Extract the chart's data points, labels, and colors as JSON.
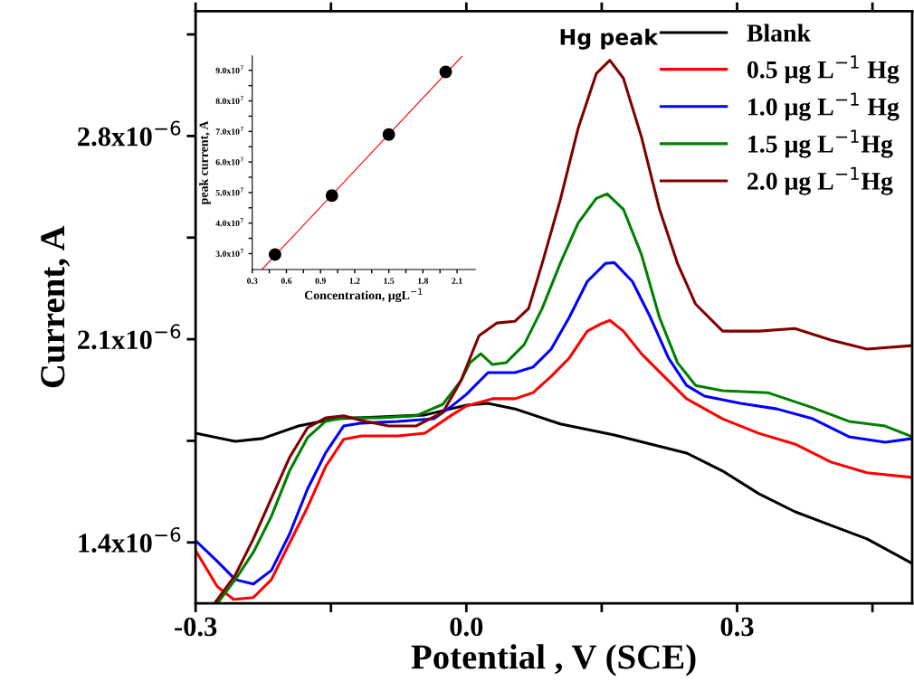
{
  "chart_data": [
    {
      "type": "line",
      "xlabel": "Potential , V (SCE)",
      "ylabel": "Current, A",
      "xlim": [
        -0.3,
        0.494
      ],
      "ylim": [
        1.19e-06,
        3.23e-06
      ],
      "xticks": [
        {
          "value": -0.3,
          "label": "-0.3"
        },
        {
          "value": -0.15,
          "label": null
        },
        {
          "value": 0.0,
          "label": "0.0"
        },
        {
          "value": 0.15,
          "label": null
        },
        {
          "value": 0.3,
          "label": "0.3"
        },
        {
          "value": 0.45,
          "label": null
        }
      ],
      "yticks": [
        {
          "value": 1.4e-06,
          "label": "1.4x10$^{−6}$"
        },
        {
          "value": 1.75e-06,
          "label": null
        },
        {
          "value": 2.1e-06,
          "label": "2.1x10$^{−6}$"
        },
        {
          "value": 2.45e-06,
          "label": null
        },
        {
          "value": 2.8e-06,
          "label": "2.8x10$^{−6}$"
        },
        {
          "value": 3.15e-06,
          "label": null
        }
      ],
      "grid": false,
      "legend": "top right",
      "line_style": "solid",
      "marker": "none",
      "annotations": [
        "Hg peak"
      ],
      "series": [
        {
          "name": "Blank",
          "color": "#000000",
          "x": [
            -0.3,
            -0.256,
            -0.226,
            -0.186,
            -0.146,
            -0.096,
            -0.046,
            0.0,
            0.024,
            0.054,
            0.104,
            0.164,
            0.204,
            0.244,
            0.284,
            0.324,
            0.364,
            0.404,
            0.444,
            0.494
          ],
          "values": [
            1.776e-06,
            1.748e-06,
            1.758e-06,
            1.801e-06,
            1.826e-06,
            1.832e-06,
            1.839e-06,
            1.873e-06,
            1.879e-06,
            1.86e-06,
            1.808e-06,
            1.77e-06,
            1.739e-06,
            1.708e-06,
            1.646e-06,
            1.568e-06,
            1.506e-06,
            1.459e-06,
            1.412e-06,
            1.328e-06
          ]
        },
        {
          "name": "0.5 μg L$^{−1}$ Hg",
          "color": "#ff0000",
          "x": [
            -0.3,
            -0.276,
            -0.258,
            -0.236,
            -0.216,
            -0.196,
            -0.176,
            -0.156,
            -0.136,
            -0.116,
            -0.076,
            -0.046,
            -0.016,
            0.0,
            0.029,
            0.054,
            0.074,
            0.094,
            0.114,
            0.134,
            0.149,
            0.159,
            0.174,
            0.194,
            0.214,
            0.244,
            0.284,
            0.324,
            0.364,
            0.404,
            0.444,
            0.494
          ],
          "values": [
            1.372e-06,
            1.248e-06,
            1.204e-06,
            1.21e-06,
            1.272e-06,
            1.397e-06,
            1.521e-06,
            1.661e-06,
            1.755e-06,
            1.767e-06,
            1.767e-06,
            1.776e-06,
            1.839e-06,
            1.87e-06,
            1.895e-06,
            1.895e-06,
            1.916e-06,
            1.972e-06,
            2.035e-06,
            2.128e-06,
            2.153e-06,
            2.165e-06,
            2.128e-06,
            2.05e-06,
            1.988e-06,
            1.895e-06,
            1.826e-06,
            1.776e-06,
            1.739e-06,
            1.677e-06,
            1.64e-06,
            1.624e-06
          ]
        },
        {
          "name": "1.0 μg L$^{−1}$ Hg",
          "color": "#0000ff",
          "x": [
            -0.3,
            -0.276,
            -0.256,
            -0.236,
            -0.216,
            -0.196,
            -0.176,
            -0.156,
            -0.136,
            -0.116,
            -0.076,
            -0.036,
            -0.016,
            0.0,
            0.024,
            0.054,
            0.074,
            0.094,
            0.114,
            0.134,
            0.154,
            0.164,
            0.184,
            0.204,
            0.224,
            0.244,
            0.264,
            0.304,
            0.344,
            0.384,
            0.424,
            0.464,
            0.494
          ],
          "values": [
            1.406e-06,
            1.335e-06,
            1.272e-06,
            1.257e-06,
            1.304e-06,
            1.428e-06,
            1.584e-06,
            1.708e-06,
            1.801e-06,
            1.811e-06,
            1.817e-06,
            1.826e-06,
            1.87e-06,
            1.91e-06,
            1.985e-06,
            1.985e-06,
            2.004e-06,
            2.066e-06,
            2.175e-06,
            2.299e-06,
            2.361e-06,
            2.364e-06,
            2.299e-06,
            2.175e-06,
            2.035e-06,
            1.941e-06,
            1.904e-06,
            1.879e-06,
            1.86e-06,
            1.826e-06,
            1.764e-06,
            1.745e-06,
            1.758e-06
          ]
        },
        {
          "name": "1.5 μg L$^{−1}$Hg",
          "color": "#008000",
          "x": [
            -0.276,
            -0.256,
            -0.236,
            -0.216,
            -0.196,
            -0.176,
            -0.156,
            -0.136,
            -0.096,
            -0.056,
            -0.026,
            -0.006,
            0.004,
            0.016,
            0.029,
            0.044,
            0.064,
            0.084,
            0.104,
            0.124,
            0.144,
            0.156,
            0.174,
            0.194,
            0.214,
            0.234,
            0.254,
            0.284,
            0.334,
            0.384,
            0.424,
            0.464,
            0.494
          ],
          "values": [
            1.19e-06,
            1.272e-06,
            1.366e-06,
            1.49e-06,
            1.646e-06,
            1.761e-06,
            1.817e-06,
            1.829e-06,
            1.829e-06,
            1.836e-06,
            1.876e-06,
            1.957e-06,
            2.019e-06,
            2.05e-06,
            2.013e-06,
            2.019e-06,
            2.081e-06,
            2.206e-06,
            2.361e-06,
            2.501e-06,
            2.585e-06,
            2.601e-06,
            2.548e-06,
            2.392e-06,
            2.175e-06,
            2.019e-06,
            1.941e-06,
            1.923e-06,
            1.916e-06,
            1.864e-06,
            1.817e-06,
            1.801e-06,
            1.764e-06
          ]
        },
        {
          "name": "2.0 μg L$^{−1}$Hg",
          "color": "#800000",
          "x": [
            -0.279,
            -0.256,
            -0.236,
            -0.216,
            -0.196,
            -0.176,
            -0.156,
            -0.136,
            -0.116,
            -0.086,
            -0.056,
            -0.026,
            -0.006,
            0.014,
            0.034,
            0.054,
            0.069,
            0.084,
            0.104,
            0.124,
            0.144,
            0.159,
            0.174,
            0.194,
            0.214,
            0.234,
            0.254,
            0.284,
            0.324,
            0.364,
            0.404,
            0.444,
            0.494
          ],
          "values": [
            1.19e-06,
            1.288e-06,
            1.412e-06,
            1.552e-06,
            1.692e-06,
            1.795e-06,
            1.829e-06,
            1.836e-06,
            1.82e-06,
            1.801e-06,
            1.801e-06,
            1.848e-06,
            1.957e-06,
            2.112e-06,
            2.156e-06,
            2.162e-06,
            2.206e-06,
            2.361e-06,
            2.579e-06,
            2.828e-06,
            3.015e-06,
            3.061e-06,
            2.999e-06,
            2.797e-06,
            2.548e-06,
            2.361e-06,
            2.221e-06,
            2.128e-06,
            2.128e-06,
            2.137e-06,
            2.097e-06,
            2.066e-06,
            2.078e-06
          ]
        }
      ]
    },
    {
      "type": "scatter",
      "xlabel": "Concentration, μgL$^{−1}$",
      "ylabel": "peak current, A",
      "xlim": [
        0.3,
        2.26
      ],
      "ylim": [
        24800000.0,
        94700000.0
      ],
      "xticks": [
        {
          "value": 0.3,
          "label": "0.3"
        },
        {
          "value": 0.45,
          "label": null
        },
        {
          "value": 0.6,
          "label": "0.6"
        },
        {
          "value": 0.75,
          "label": null
        },
        {
          "value": 0.9,
          "label": "0.9"
        },
        {
          "value": 1.05,
          "label": null
        },
        {
          "value": 1.2,
          "label": "1.2"
        },
        {
          "value": 1.35,
          "label": null
        },
        {
          "value": 1.5,
          "label": "1.5"
        },
        {
          "value": 1.65,
          "label": null
        },
        {
          "value": 1.8,
          "label": "1.8"
        },
        {
          "value": 1.95,
          "label": null
        },
        {
          "value": 2.1,
          "label": "2.1"
        }
      ],
      "yticks": [
        {
          "value": 30000000.0,
          "label": "3.0x10$^{7}$"
        },
        {
          "value": 35000000.0,
          "label": null
        },
        {
          "value": 40000000.0,
          "label": "4.0x10$^{7}$"
        },
        {
          "value": 45000000.0,
          "label": null
        },
        {
          "value": 50000000.0,
          "label": "5.0x10$^{7}$"
        },
        {
          "value": 55000000.0,
          "label": null
        },
        {
          "value": 60000000.0,
          "label": "6.0x10$^{7}$"
        },
        {
          "value": 65000000.0,
          "label": null
        },
        {
          "value": 70000000.0,
          "label": "7.0x10$^{7}$"
        },
        {
          "value": 75000000.0,
          "label": null
        },
        {
          "value": 80000000.0,
          "label": "8.0x10$^{7}$"
        },
        {
          "value": 85000000.0,
          "label": null
        },
        {
          "value": 90000000.0,
          "label": "9.0x10$^{7}$"
        }
      ],
      "grid": false,
      "marker": "circle",
      "series": [
        {
          "type": "scatter",
          "color": "#000000",
          "x": [
            0.5,
            1.0,
            1.5,
            2.0
          ],
          "values": [
            29700000.0,
            49000000.0,
            69000000.0,
            89500000.0
          ]
        },
        {
          "type": "line",
          "color": "#ff0000",
          "marker": "none",
          "x": [
            0.385,
            2.146
          ],
          "values": [
            24800000.0,
            94700000.0
          ]
        }
      ]
    }
  ]
}
